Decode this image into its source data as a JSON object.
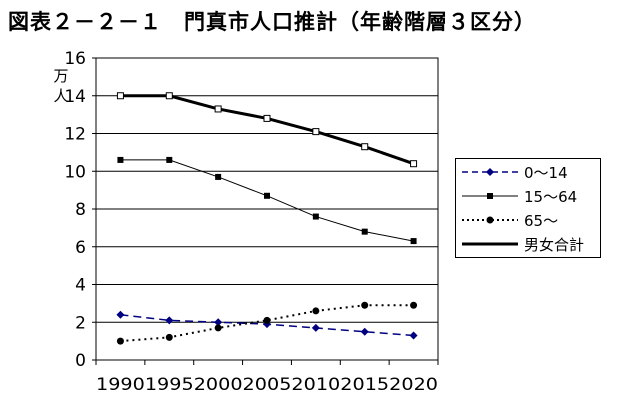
{
  "header": {
    "title": "図表２－２－１　門真市人口推計（年齢階層３区分）"
  },
  "chart_data": {
    "type": "line",
    "title": "図表２－２－１　門真市人口推計（年齢階層３区分）",
    "ylabel": "万人",
    "ylim": [
      0,
      16
    ],
    "yticks": [
      0,
      2,
      4,
      6,
      8,
      10,
      12,
      14,
      16
    ],
    "grid": true,
    "legend": "right",
    "categories": [
      "1990",
      "1995",
      "2000",
      "2005",
      "2010",
      "2015",
      "2020"
    ],
    "series": [
      {
        "name": "0～14",
        "values": [
          2.4,
          2.1,
          2.0,
          1.9,
          1.7,
          1.5,
          1.3
        ],
        "color": "#000080",
        "dash": "dashed",
        "marker": "diamond"
      },
      {
        "name": "15～64",
        "values": [
          10.6,
          10.6,
          9.7,
          8.7,
          7.6,
          6.8,
          6.3
        ],
        "color": "#000000",
        "dash": "solid",
        "marker": "square"
      },
      {
        "name": "65～",
        "values": [
          1.0,
          1.2,
          1.7,
          2.1,
          2.6,
          2.9,
          2.9
        ],
        "color": "#000000",
        "dash": "dotted",
        "marker": "circle"
      },
      {
        "name": "男女合計",
        "values": [
          14.0,
          14.0,
          13.3,
          12.8,
          12.1,
          11.3,
          10.4
        ],
        "color": "#000000",
        "dash": "thick",
        "marker": "open-square"
      }
    ]
  }
}
